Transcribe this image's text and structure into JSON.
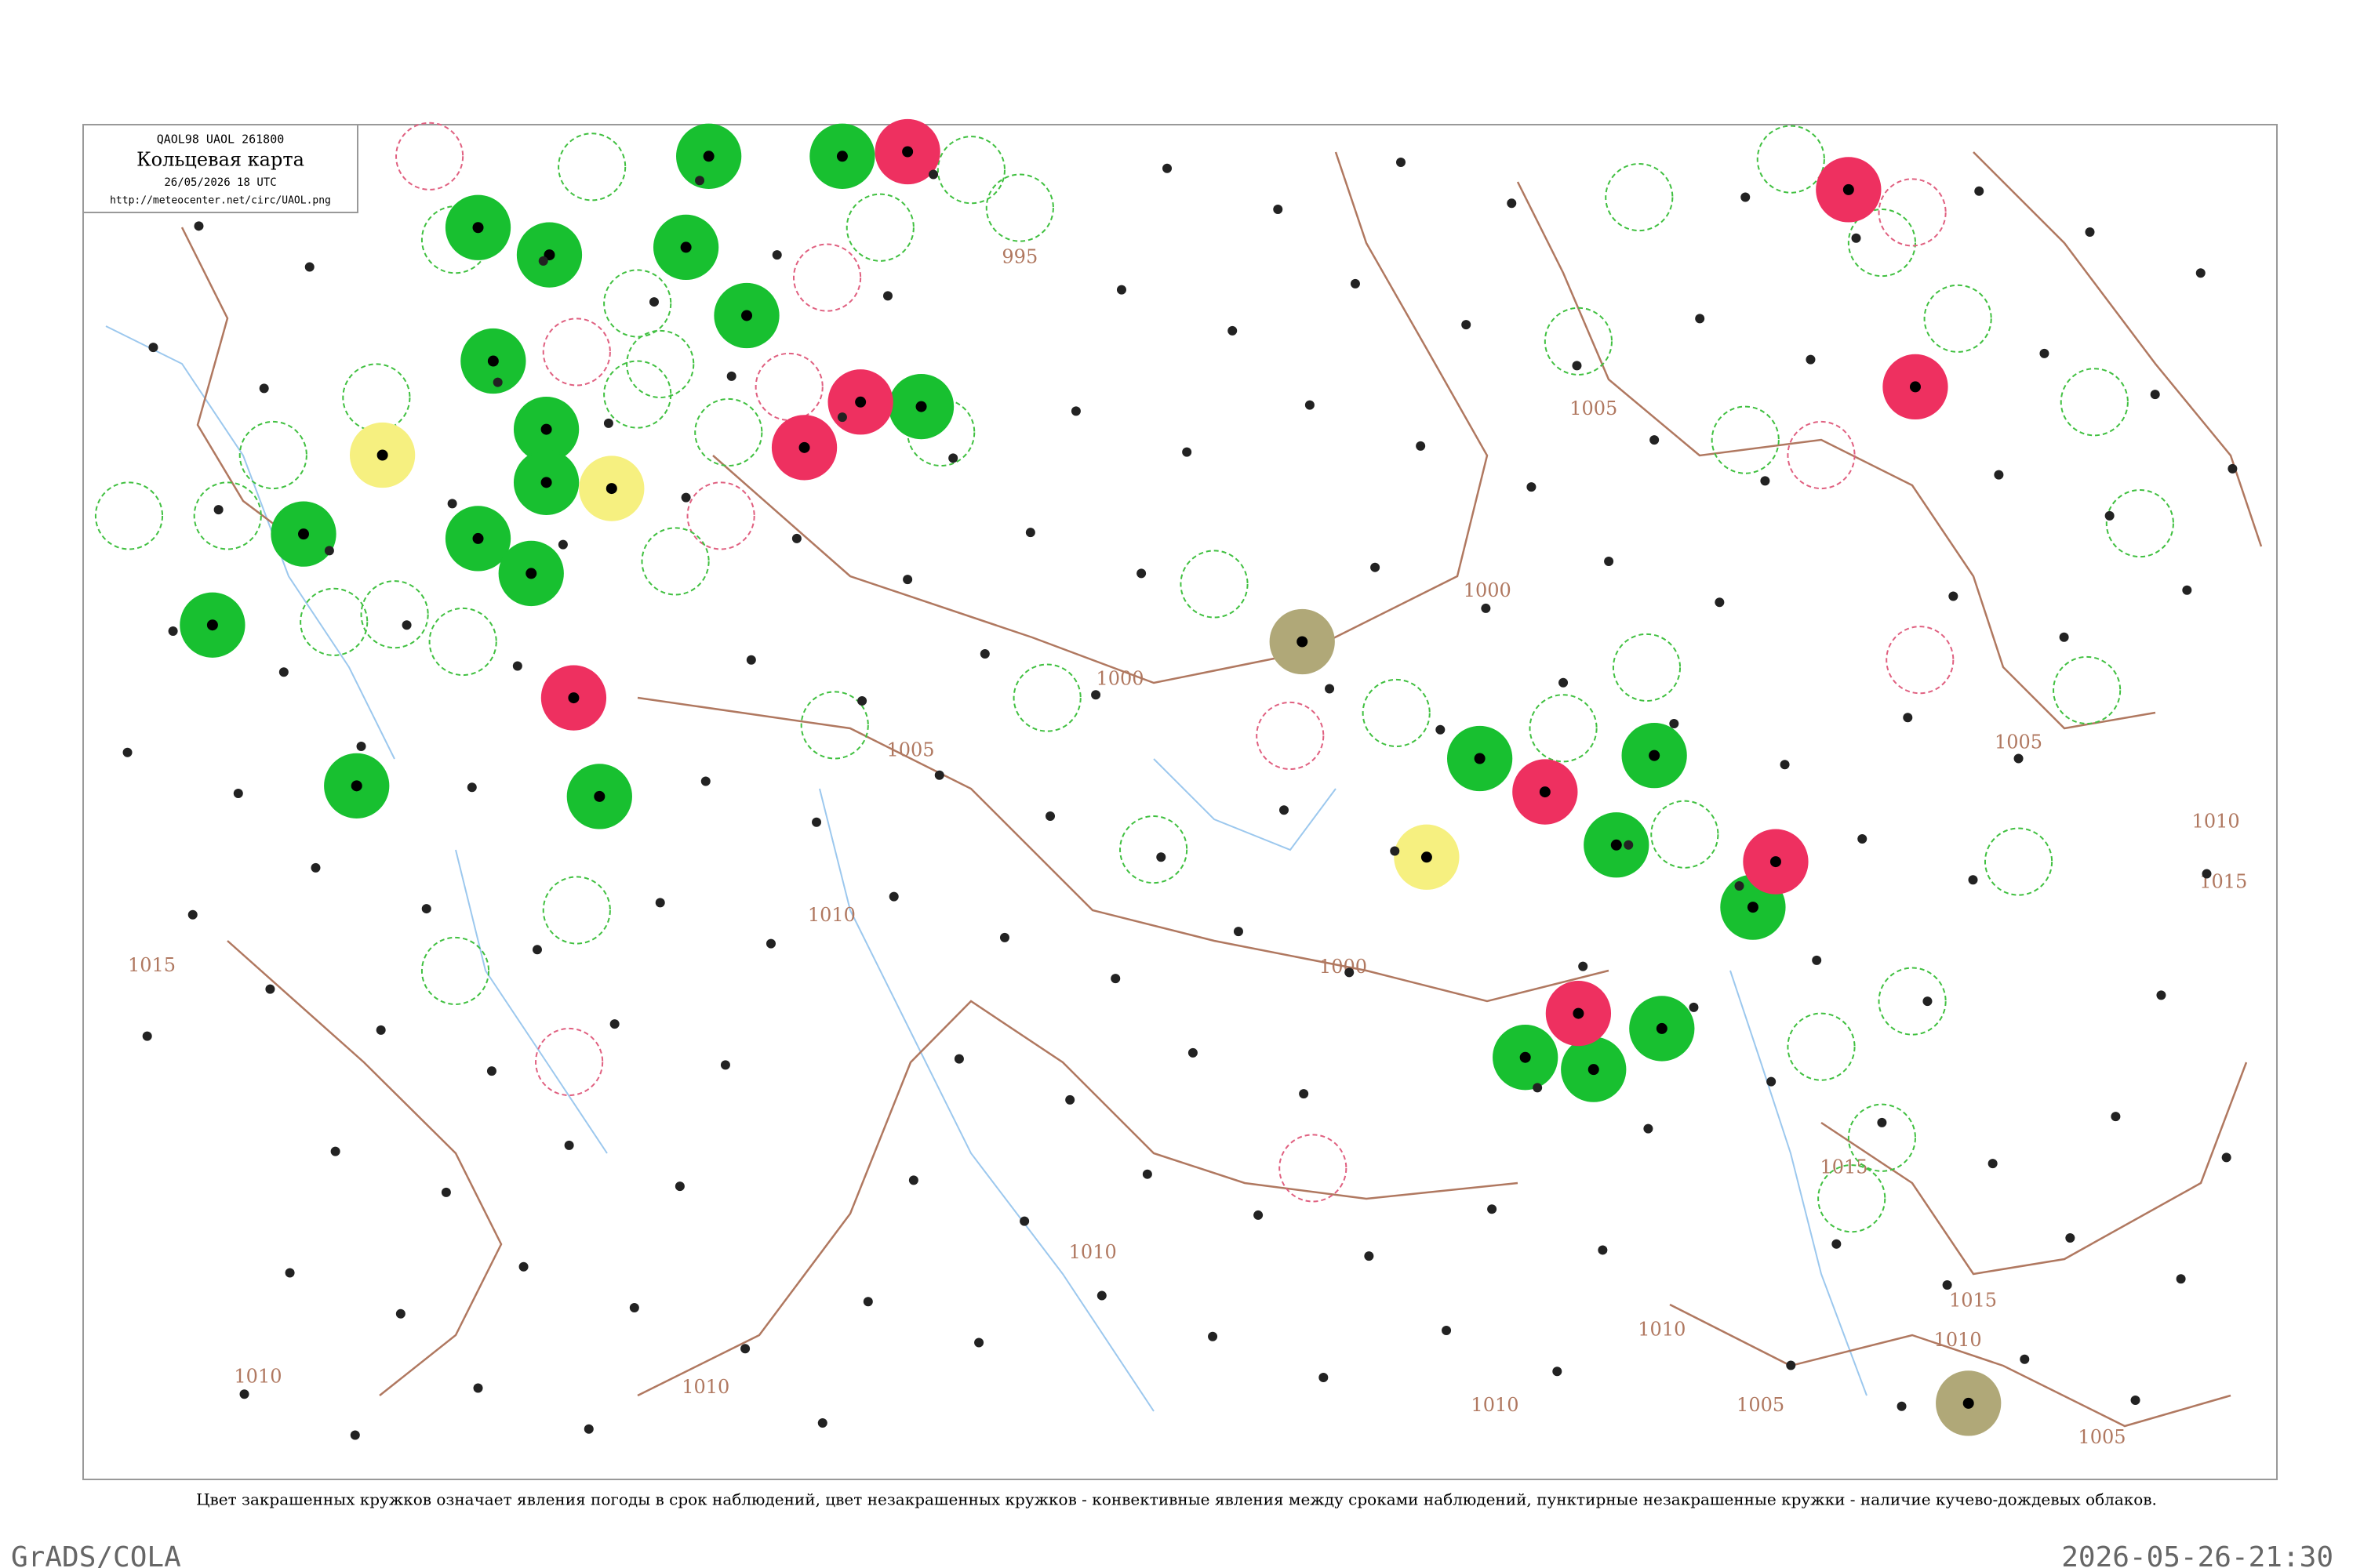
{
  "header": {
    "code": "QAOL98  UAOL  261800",
    "title": "Кольцевая карта",
    "datetime": "26/05/2026 18 UTC",
    "url": "http://meteocenter.net/circ/UAOL.png"
  },
  "isobar_labels": [
    995,
    1000,
    1000,
    1000,
    1005,
    1005,
    1005,
    1005,
    1005,
    1010,
    1010,
    1010,
    1010,
    1010,
    1010,
    1010,
    1010,
    1015,
    1015,
    1015,
    1015
  ],
  "caption": "Цвет закрашенных кружков означает явления погоды в срок наблюдений, цвет незакрашенных кружков - конвективные явления между сроками наблюдений, пунктирные незакрашенные кружки - наличие кучево-дождевых облаков.",
  "footer": {
    "left": "GrADS/COLA",
    "right": "2026-05-26-21:30"
  }
}
